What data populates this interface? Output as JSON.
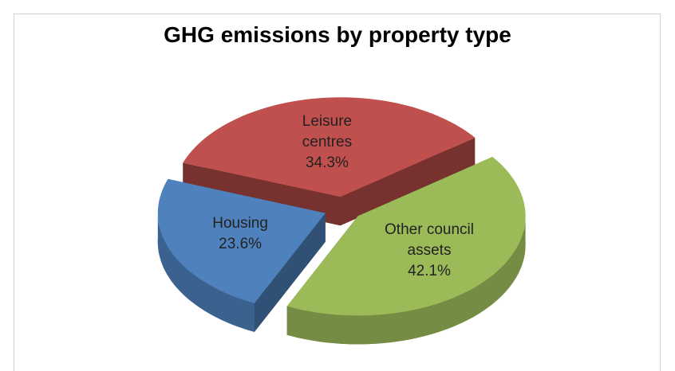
{
  "chart_data": {
    "type": "pie",
    "title": "GHG emissions by property type",
    "categories": [
      "Leisure centres",
      "Other council assets",
      "Housing"
    ],
    "values": [
      34.3,
      42.1,
      23.6
    ],
    "value_labels": [
      "34.3%",
      "42.1%",
      "23.6%"
    ],
    "colors": [
      "#c0504d",
      "#9bbb59",
      "#4f81bd"
    ]
  }
}
